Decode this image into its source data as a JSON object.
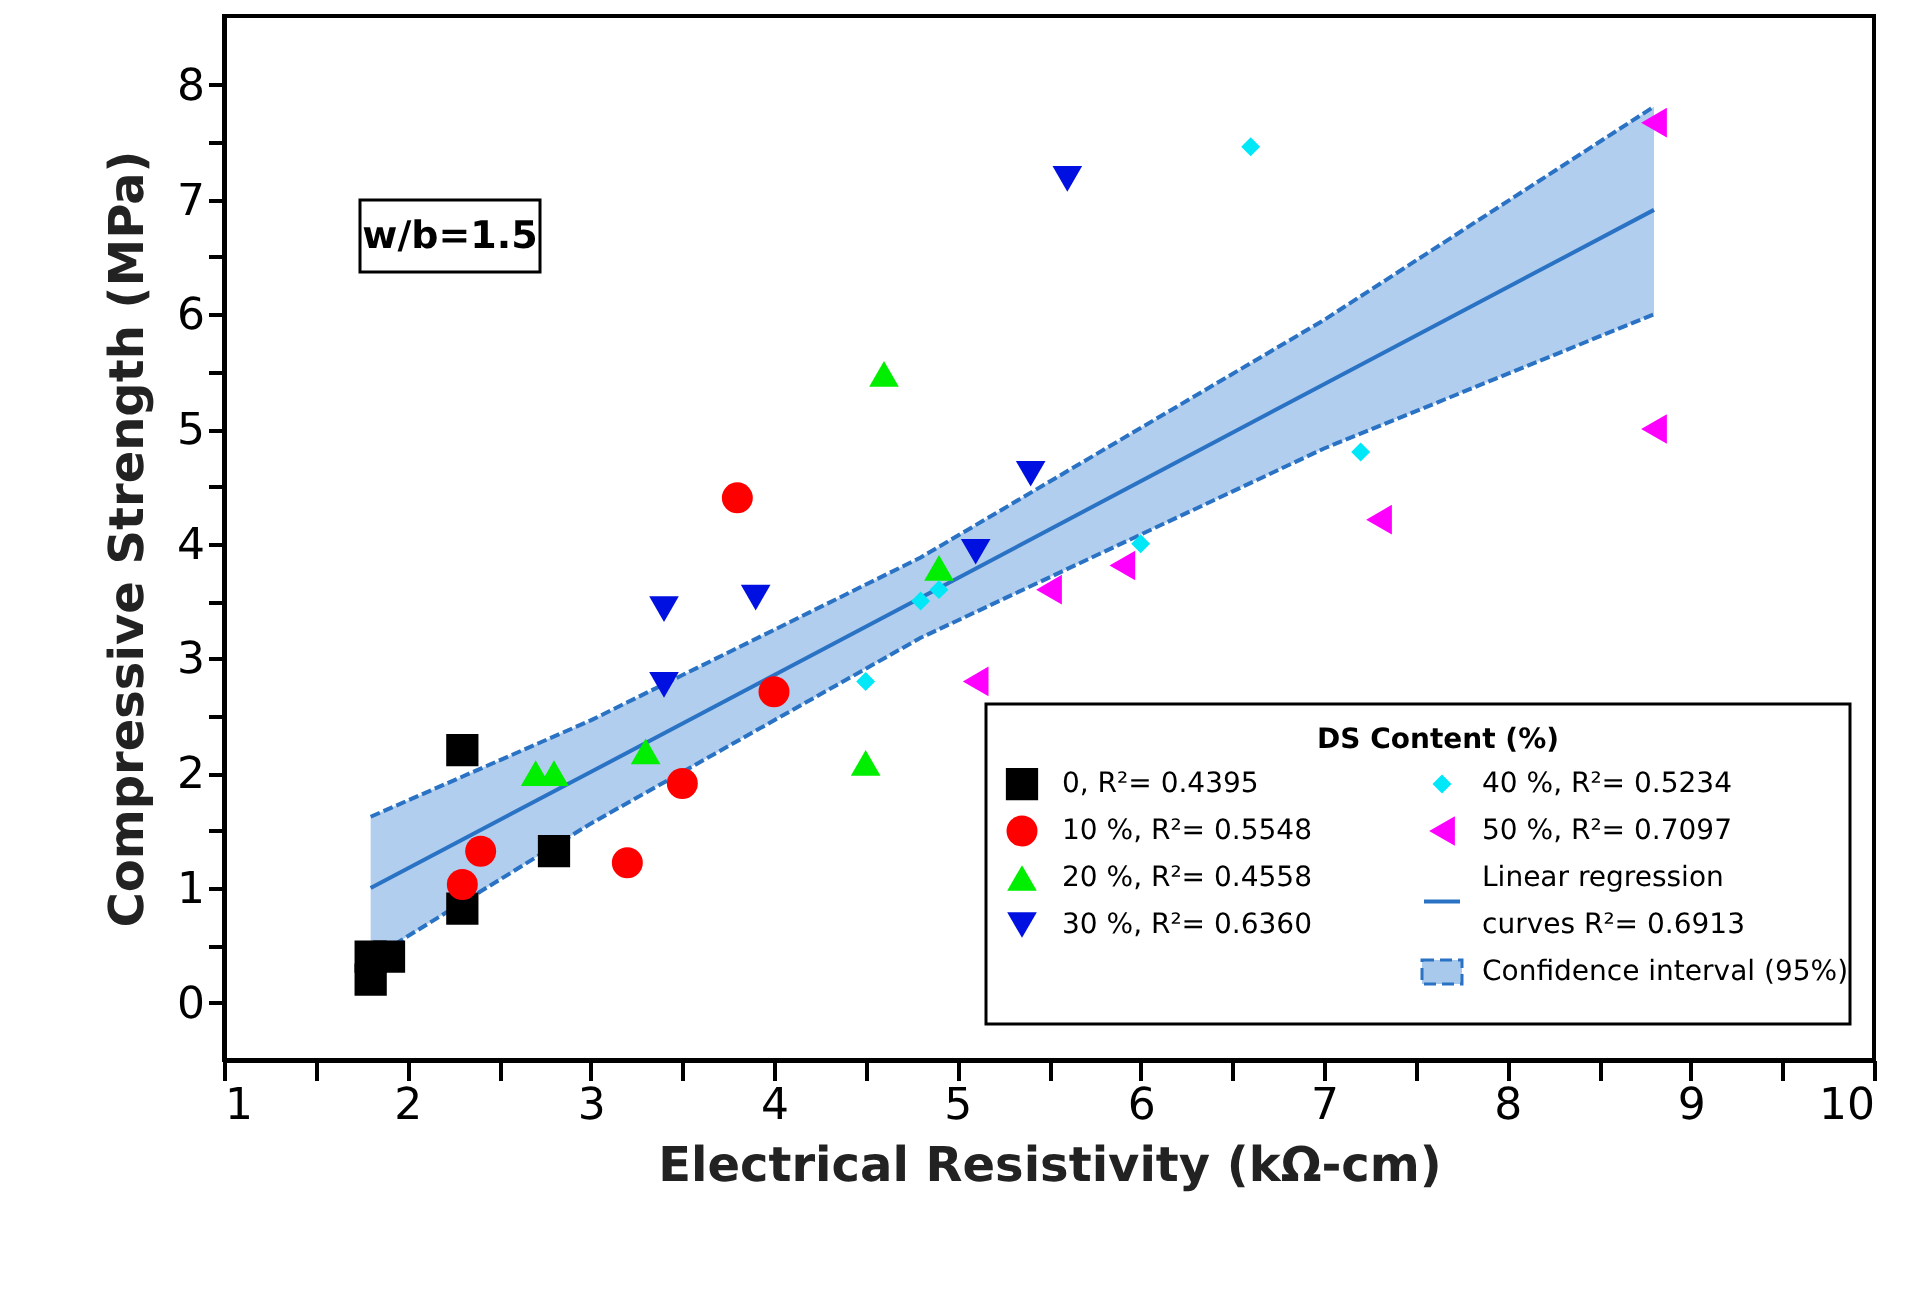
{
  "chart_data": {
    "type": "scatter",
    "xlabel": "Electrical Resistivity (kΩ-cm)",
    "ylabel": "Compressive Strength (MPa)",
    "legend_title": "DS Content (%)",
    "legend": "bottom right",
    "grid": false,
    "annotations": [
      "w/b=1.5"
    ],
    "xlim": [
      1,
      10
    ],
    "ylim": [
      -0.5,
      8.6
    ],
    "xticks": [
      1,
      {
        "value": 1.5,
        "label": null
      },
      2,
      {
        "value": 2.5,
        "label": null
      },
      3,
      {
        "value": 3.5,
        "label": null
      },
      4,
      {
        "value": 4.5,
        "label": null
      },
      5,
      {
        "value": 5.5,
        "label": null
      },
      6,
      {
        "value": 6.5,
        "label": null
      },
      7,
      {
        "value": 7.5,
        "label": null
      },
      8,
      {
        "value": 8.5,
        "label": null
      },
      9,
      {
        "value": 9.5,
        "label": null
      },
      10
    ],
    "yticks": [
      0,
      {
        "value": 0.5,
        "label": null
      },
      1,
      {
        "value": 1.5,
        "label": null
      },
      2,
      {
        "value": 2.5,
        "label": null
      },
      3,
      {
        "value": 3.5,
        "label": null
      },
      4,
      {
        "value": 4.5,
        "label": null
      },
      5,
      {
        "value": 5.5,
        "label": null
      },
      6,
      {
        "value": 6.5,
        "label": null
      },
      7,
      {
        "value": 7.5,
        "label": null
      },
      8
    ],
    "series": [
      {
        "name": "0, R²= 0.4395",
        "marker": "square",
        "color": "#000000",
        "x": [
          1.8,
          1.8,
          1.9,
          2.3,
          2.3,
          2.8
        ],
        "values": [
          0.2,
          0.4,
          0.4,
          0.82,
          2.2,
          1.32
        ]
      },
      {
        "name": "10 %, R²= 0.5548",
        "marker": "circle",
        "color": "#ff0000",
        "x": [
          2.3,
          2.4,
          3.2,
          3.5,
          3.8,
          4.0
        ],
        "values": [
          1.03,
          1.32,
          1.22,
          1.91,
          4.4,
          2.71
        ]
      },
      {
        "name": "20 %, R²= 0.4558",
        "marker": "triangle",
        "color": "#00ee00",
        "x": [
          2.7,
          2.8,
          3.3,
          4.5,
          4.6,
          4.9
        ],
        "values": [
          2.0,
          2.0,
          2.19,
          2.09,
          5.48,
          3.79
        ]
      },
      {
        "name": "30 %, R²= 0.6360",
        "marker": "triangle-down",
        "color": "#0010e0",
        "x": [
          3.4,
          3.4,
          3.9,
          5.1,
          5.4,
          5.6
        ],
        "values": [
          2.77,
          3.43,
          3.53,
          3.93,
          4.61,
          7.18
        ]
      },
      {
        "name": "40 %, R²= 0.5234",
        "marker": "diamond",
        "color": "#00e8f8",
        "x": [
          4.5,
          4.8,
          4.9,
          6.0,
          6.6,
          7.2
        ],
        "values": [
          2.8,
          3.5,
          3.6,
          4.0,
          7.46,
          4.8
        ]
      },
      {
        "name": "50 %, R²= 0.7097",
        "marker": "triangle-left",
        "color": "#ff00ff",
        "x": [
          5.1,
          5.5,
          5.9,
          7.3,
          8.8,
          8.8
        ],
        "values": [
          2.8,
          3.6,
          3.81,
          4.21,
          5.0,
          7.67
        ]
      },
      {
        "name": "Linear regression curves R²= 0.6913",
        "type": "line",
        "line_style": "solid",
        "color": "#2a72c4",
        "x": [
          1.8,
          3,
          4.8,
          7,
          8.8
        ],
        "values": [
          1.0,
          2.01,
          3.53,
          5.39,
          6.91
        ],
        "lower": [
          0.38,
          1.56,
          3.18,
          4.83,
          6.0
        ],
        "upper": [
          1.62,
          2.46,
          3.88,
          5.95,
          7.81
        ]
      },
      {
        "name": "Confidence interval (95%)",
        "type": "line",
        "line_style": "dashed",
        "color": "#2a72c4",
        "x": [
          1.8,
          3,
          4.8,
          7,
          8.8
        ],
        "values": [
          1.62,
          2.46,
          3.88,
          5.95,
          7.81
        ]
      },
      {
        "type": "line",
        "line_style": "dashed",
        "color": "#2a72c4",
        "x": [
          1.8,
          3,
          4.8,
          7,
          8.8
        ],
        "values": [
          0.38,
          1.56,
          3.18,
          4.83,
          6.0
        ]
      }
    ]
  }
}
